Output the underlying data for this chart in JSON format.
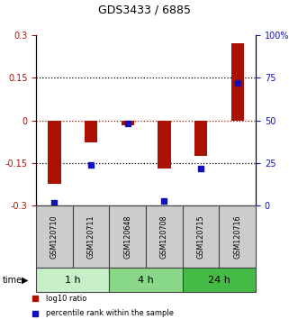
{
  "title": "GDS3433 / 6885",
  "samples": [
    "GSM120710",
    "GSM120711",
    "GSM120648",
    "GSM120708",
    "GSM120715",
    "GSM120716"
  ],
  "log10_ratio": [
    -0.222,
    -0.078,
    -0.018,
    -0.168,
    -0.125,
    0.272
  ],
  "percentile_rank": [
    2.0,
    24.0,
    48.0,
    3.0,
    22.0,
    72.0
  ],
  "time_groups": [
    {
      "label": "1 h",
      "start": 0,
      "end": 2,
      "color": "#c8f0c8"
    },
    {
      "label": "4 h",
      "start": 2,
      "end": 4,
      "color": "#88d888"
    },
    {
      "label": "24 h",
      "start": 4,
      "end": 6,
      "color": "#44bb44"
    }
  ],
  "ylim_left": [
    -0.3,
    0.3
  ],
  "ylim_right": [
    0,
    100
  ],
  "yticks_left": [
    -0.3,
    -0.15,
    0,
    0.15,
    0.3
  ],
  "yticks_right": [
    0,
    25,
    50,
    75,
    100
  ],
  "ytick_labels_left": [
    "-0.3",
    "-0.15",
    "0",
    "0.15",
    "0.3"
  ],
  "ytick_labels_right": [
    "0",
    "25",
    "50",
    "75",
    "100%"
  ],
  "bar_color": "#aa1100",
  "dot_color": "#1111bb",
  "bar_width": 0.35,
  "dot_size": 5,
  "sample_box_color": "#cccccc",
  "sample_box_edge": "#444444",
  "legend_items": [
    {
      "label": "log10 ratio",
      "color": "#aa1100"
    },
    {
      "label": "percentile rank within the sample",
      "color": "#1111bb"
    }
  ]
}
